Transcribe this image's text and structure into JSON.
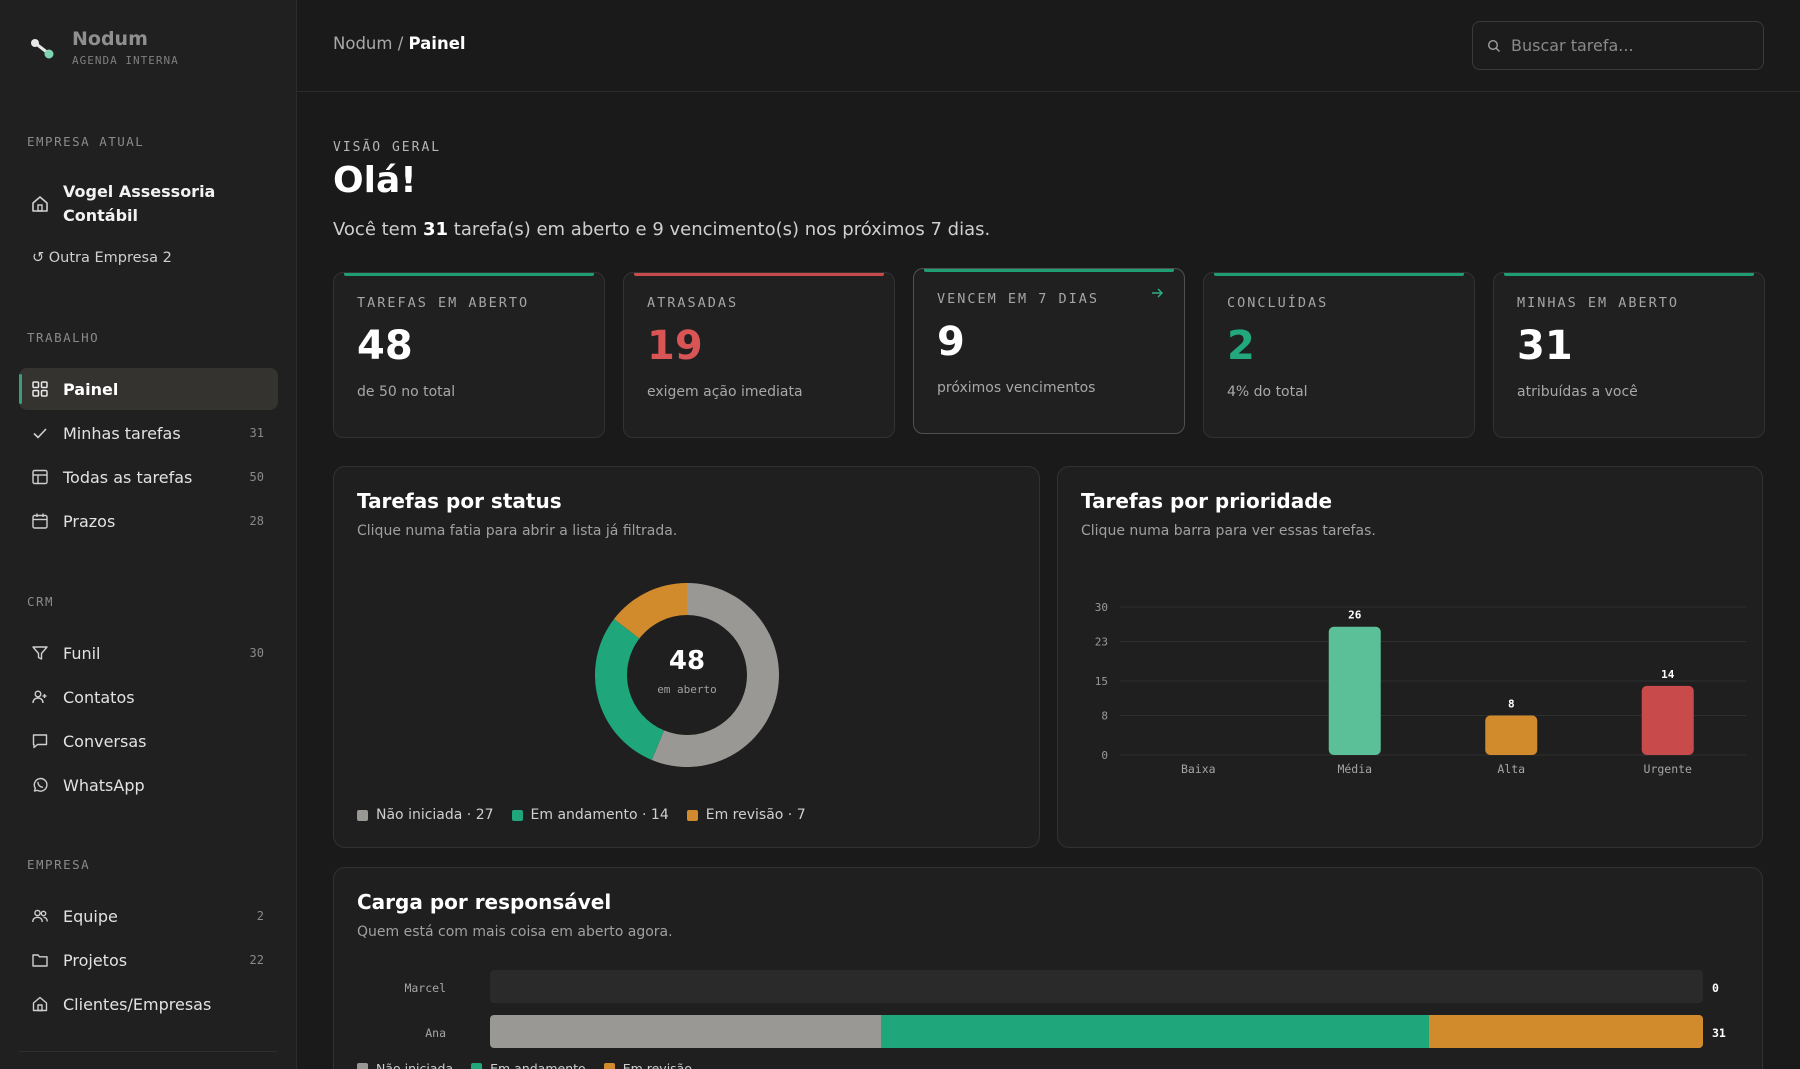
{
  "brand": {
    "name": "Nodum",
    "tagline": "AGENDA INTERNA"
  },
  "sidebar": {
    "company_section": "EMPRESA ATUAL",
    "current_company": "Vogel Assessoria Contábil",
    "other_company": "↺ Outra Empresa 2",
    "work_section": "TRABALHO",
    "work_items": [
      {
        "label": "Painel",
        "count": "",
        "icon": "dashboard-icon",
        "active": true
      },
      {
        "label": "Minhas tarefas",
        "count": "31",
        "icon": "check-icon"
      },
      {
        "label": "Todas as tarefas",
        "count": "50",
        "icon": "table-icon"
      },
      {
        "label": "Prazos",
        "count": "28",
        "icon": "calendar-icon"
      }
    ],
    "crm_section": "CRM",
    "crm_items": [
      {
        "label": "Funil",
        "count": "30",
        "icon": "funnel-icon"
      },
      {
        "label": "Contatos",
        "count": "",
        "icon": "contacts-icon"
      },
      {
        "label": "Conversas",
        "count": "",
        "icon": "chat-icon"
      },
      {
        "label": "WhatsApp",
        "count": "",
        "icon": "whatsapp-icon"
      }
    ],
    "company_mgmt_section": "EMPRESA",
    "company_items": [
      {
        "label": "Equipe",
        "count": "2",
        "icon": "team-icon"
      },
      {
        "label": "Projetos",
        "count": "22",
        "icon": "folder-icon"
      },
      {
        "label": "Clientes/Empresas",
        "count": "",
        "icon": "building-icon"
      }
    ]
  },
  "header": {
    "breadcrumb_root": "Nodum",
    "breadcrumb_sep": " / ",
    "breadcrumb_current": "Painel",
    "search_placeholder": "Buscar tarefa..."
  },
  "overview": {
    "eyebrow": "VISÃO GERAL",
    "greeting": "Olá!",
    "summary_prefix": "Você tem ",
    "summary_open": "31",
    "summary_suffix": " tarefa(s) em aberto e 9 vencimento(s) nos próximos 7 dias."
  },
  "kpis": [
    {
      "label": "TAREFAS EM ABERTO",
      "value": "48",
      "sub": "de 50 no total",
      "accent": "#1f9e74",
      "value_color": "#ffffff"
    },
    {
      "label": "ATRASADAS",
      "value": "19",
      "sub": "exigem ação imediata",
      "accent": "#c94a4a",
      "value_color": "#d95454"
    },
    {
      "label": "VENCEM EM 7 DIAS",
      "value": "9",
      "sub": "próximos vencimentos",
      "accent": "#1f9e74",
      "value_color": "#ffffff"
    },
    {
      "label": "CONCLUÍDAS",
      "value": "2",
      "sub": "4% do total",
      "accent": "#1f9e74",
      "value_color": "#22a87c"
    },
    {
      "label": "MINHAS EM ABERTO",
      "value": "31",
      "sub": "atribuídas a você",
      "accent": "#1f9e74",
      "value_color": "#ffffff"
    }
  ],
  "status_card": {
    "title": "Tarefas por status",
    "subtitle": "Clique numa fatia para abrir a lista já filtrada.",
    "center_value": "48",
    "center_label": "em aberto",
    "legend": [
      {
        "text": "Não iniciada · 27",
        "color": "#9a9894"
      },
      {
        "text": "Em andamento · 14",
        "color": "#1fa67a"
      },
      {
        "text": "Em revisão · 7",
        "color": "#d18b2c"
      }
    ]
  },
  "priority_card": {
    "title": "Tarefas por prioridade",
    "subtitle": "Clique numa barra para ver essas tarefas."
  },
  "load_card": {
    "title": "Carga por responsável",
    "subtitle": "Quem está com mais coisa em aberto agora.",
    "rows": [
      {
        "name": "Marcel",
        "total": "0",
        "segments": [
          0,
          0,
          0
        ]
      },
      {
        "name": "Ana",
        "total": "31",
        "segments": [
          10,
          14,
          7
        ]
      }
    ],
    "legend": [
      "Não iniciada",
      "Em andamento",
      "Em revisão"
    ]
  },
  "chart_data": [
    {
      "type": "pie",
      "title": "Tarefas por status",
      "categories": [
        "Não iniciada",
        "Em andamento",
        "Em revisão"
      ],
      "values": [
        27,
        14,
        7
      ],
      "colors": [
        "#9a9894",
        "#1fa67a",
        "#d18b2c"
      ]
    },
    {
      "type": "bar",
      "title": "Tarefas por prioridade",
      "categories": [
        "Baixa",
        "Média",
        "Alta",
        "Urgente"
      ],
      "values": [
        0,
        26,
        8,
        14
      ],
      "colors": [
        "#5bbf97",
        "#5bbf97",
        "#d18b2c",
        "#c94a4a"
      ],
      "yticks": [
        "0",
        "8",
        "15",
        "23",
        "30"
      ],
      "ylim": [
        0,
        30
      ],
      "grid": true
    },
    {
      "type": "bar",
      "title": "Carga por responsável",
      "orientation": "horizontal",
      "stacked": true,
      "categories": [
        "Marcel",
        "Ana"
      ],
      "series": [
        {
          "name": "Não iniciada",
          "values": [
            0,
            10
          ],
          "color": "#9a9894"
        },
        {
          "name": "Em andamento",
          "values": [
            0,
            14
          ],
          "color": "#1fa67a"
        },
        {
          "name": "Em revisão",
          "values": [
            0,
            7
          ],
          "color": "#d18b2c"
        }
      ]
    }
  ]
}
